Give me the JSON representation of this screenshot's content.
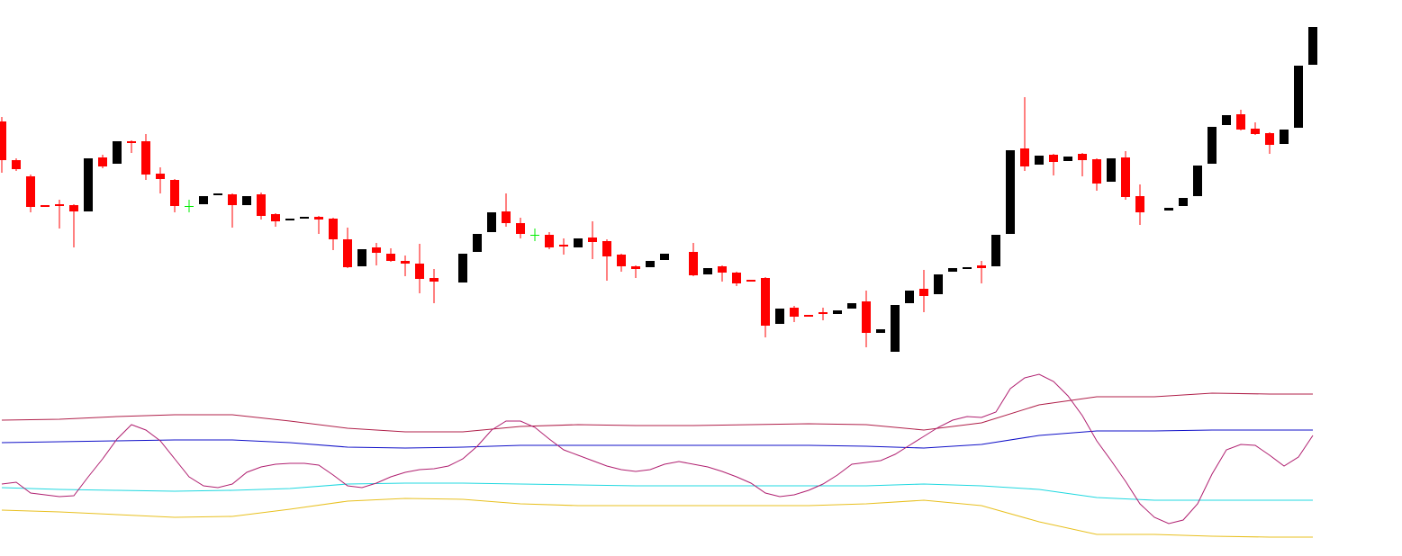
{
  "chart_data": [
    {
      "type": "candlestick",
      "xlim": [
        -0.125,
        91.875
      ],
      "ylim": [
        0,
        618
      ],
      "up_color": "#000000",
      "down_color": "#ff0000",
      "doji_color": "#00ee00",
      "x": [
        0,
        1,
        2,
        3,
        4,
        5,
        6,
        7,
        8,
        9,
        10,
        11,
        12,
        13,
        14,
        15,
        16,
        17,
        18,
        19,
        20,
        21,
        22,
        23,
        24,
        25,
        26,
        27,
        28,
        29,
        30,
        32,
        33,
        34,
        35,
        36,
        37,
        38,
        39,
        40,
        41,
        42,
        43,
        44,
        45,
        46,
        48,
        49,
        50,
        51,
        52,
        53,
        54,
        55,
        56,
        57,
        58,
        59,
        60,
        61,
        62,
        63,
        64,
        65,
        66,
        67,
        68,
        69,
        70,
        71,
        72,
        73,
        74,
        75,
        76,
        77,
        78,
        79,
        81,
        82,
        83,
        84,
        85,
        86,
        87,
        88,
        89,
        90,
        91
      ],
      "open": [
        483,
        440,
        422,
        390,
        391,
        390,
        383,
        443,
        436,
        461,
        461,
        425,
        418,
        389,
        391,
        401,
        402,
        390,
        402,
        380,
        373,
        375,
        377,
        375,
        352,
        322,
        343,
        336,
        328,
        325,
        309,
        304,
        338,
        360,
        383,
        370,
        357,
        357,
        346,
        343,
        354,
        350,
        335,
        322,
        321,
        329,
        338,
        313,
        322,
        315,
        307,
        309,
        258,
        276,
        268,
        271,
        269,
        275,
        283,
        248,
        227,
        281,
        297,
        291,
        316,
        319,
        323,
        322,
        358,
        453,
        435,
        446,
        439,
        447,
        441,
        416,
        443,
        400,
        384,
        389,
        400,
        436,
        479,
        491,
        475,
        470,
        458,
        476,
        546
      ],
      "close": [
        440,
        430,
        388,
        388,
        389,
        383,
        442,
        433,
        461,
        459,
        424,
        419,
        389,
        389,
        400,
        403,
        390,
        400,
        378,
        372,
        375,
        377,
        374,
        352,
        321,
        341,
        337,
        328,
        325,
        308,
        305,
        336,
        358,
        382,
        370,
        358,
        357,
        343,
        344,
        353,
        349,
        333,
        322,
        319,
        328,
        336,
        312,
        320,
        315,
        303,
        305,
        256,
        275,
        266,
        266,
        269,
        273,
        281,
        248,
        252,
        279,
        295,
        289,
        313,
        320,
        321,
        320,
        357,
        451,
        433,
        445,
        438,
        444,
        440,
        414,
        442,
        399,
        382,
        387,
        398,
        434,
        477,
        490,
        474,
        469,
        457,
        474,
        545,
        588
      ],
      "high": [
        488,
        442,
        424,
        390,
        396,
        391,
        442,
        446,
        461,
        462,
        469,
        432,
        419,
        396,
        400,
        403,
        403,
        400,
        404,
        381,
        375,
        377,
        378,
        376,
        365,
        341,
        348,
        342,
        334,
        347,
        319,
        336,
        358,
        382,
        403,
        376,
        364,
        360,
        353,
        353,
        372,
        352,
        336,
        323,
        328,
        336,
        348,
        320,
        323,
        316,
        307,
        310,
        275,
        278,
        268,
        276,
        273,
        281,
        295,
        252,
        279,
        295,
        318,
        313,
        320,
        321,
        328,
        357,
        451,
        510,
        445,
        447,
        444,
        448,
        442,
        442,
        450,
        413,
        387,
        398,
        434,
        477,
        490,
        496,
        482,
        471,
        474,
        545,
        588
      ],
      "low": [
        426,
        428,
        382,
        388,
        364,
        343,
        383,
        431,
        436,
        448,
        418,
        403,
        382,
        382,
        391,
        401,
        365,
        390,
        374,
        366,
        373,
        375,
        358,
        340,
        320,
        322,
        323,
        327,
        311,
        292,
        281,
        304,
        338,
        360,
        366,
        353,
        350,
        341,
        335,
        343,
        330,
        306,
        316,
        309,
        321,
        329,
        311,
        313,
        305,
        300,
        305,
        243,
        258,
        260,
        266,
        262,
        269,
        275,
        232,
        248,
        227,
        281,
        271,
        291,
        316,
        319,
        303,
        322,
        358,
        428,
        435,
        423,
        439,
        422,
        406,
        416,
        396,
        368,
        384,
        389,
        400,
        436,
        479,
        473,
        468,
        447,
        458,
        476,
        546
      ]
    },
    {
      "type": "line",
      "xlim": [
        -0.125,
        91.875
      ],
      "ylim": [
        0,
        618
      ],
      "series": [
        {
          "color": "#b0204a",
          "x": [
            0,
            4,
            8,
            12,
            16,
            20,
            24,
            28,
            32,
            36,
            40,
            44,
            48,
            52,
            56,
            60,
            64,
            68,
            72,
            76,
            80,
            84,
            88,
            91
          ],
          "values": [
            151,
            152,
            155,
            157,
            157,
            150,
            142,
            138,
            138,
            144,
            146,
            145,
            145,
            146,
            147,
            146,
            140,
            148,
            168,
            177,
            177,
            181,
            180,
            180
          ]
        },
        {
          "color": "#1010c8",
          "x": [
            0,
            4,
            8,
            12,
            16,
            20,
            24,
            28,
            32,
            36,
            40,
            44,
            48,
            52,
            56,
            60,
            64,
            68,
            72,
            76,
            80,
            84,
            88,
            91
          ],
          "values": [
            126,
            127,
            128,
            129,
            129,
            126,
            121,
            120,
            121,
            123,
            123,
            123,
            123,
            123,
            123,
            122,
            120,
            124,
            134,
            139,
            139,
            140,
            140,
            140
          ]
        },
        {
          "color": "#20d8e0",
          "x": [
            0,
            4,
            8,
            12,
            16,
            20,
            24,
            28,
            32,
            36,
            40,
            44,
            48,
            52,
            56,
            60,
            64,
            68,
            72,
            76,
            80,
            84,
            88,
            91
          ],
          "values": [
            76,
            74,
            73,
            72,
            73,
            75,
            80,
            81,
            81,
            80,
            79,
            78,
            78,
            78,
            78,
            78,
            80,
            78,
            74,
            65,
            62,
            62,
            62,
            62
          ]
        },
        {
          "color": "#e8c020",
          "x": [
            0,
            4,
            8,
            12,
            16,
            20,
            24,
            28,
            32,
            36,
            40,
            44,
            48,
            52,
            56,
            60,
            64,
            68,
            72,
            76,
            80,
            84,
            88,
            91
          ],
          "values": [
            51,
            49,
            46,
            43,
            44,
            52,
            61,
            64,
            63,
            58,
            56,
            56,
            56,
            56,
            56,
            58,
            62,
            56,
            38,
            24,
            24,
            22,
            21,
            21
          ]
        },
        {
          "color": "#b02070",
          "x": [
            0,
            1,
            2,
            3,
            4,
            5,
            6,
            7,
            8,
            9,
            10,
            11,
            12,
            13,
            14,
            15,
            16,
            17,
            18,
            19,
            20,
            21,
            22,
            23,
            24,
            25,
            26,
            27,
            28,
            29,
            30,
            31,
            32,
            33,
            34,
            35,
            36,
            37,
            38,
            39,
            40,
            41,
            42,
            43,
            44,
            45,
            46,
            47,
            48,
            49,
            50,
            51,
            52,
            53,
            54,
            55,
            56,
            57,
            58,
            59,
            60,
            61,
            62,
            63,
            64,
            65,
            66,
            67,
            68,
            69,
            70,
            71,
            72,
            73,
            74,
            75,
            76,
            77,
            78,
            79,
            80,
            81,
            82,
            83,
            84,
            85,
            86,
            87,
            88,
            89,
            90,
            91
          ],
          "values": [
            80,
            82,
            70,
            68,
            66,
            67,
            88,
            108,
            130,
            146,
            140,
            128,
            108,
            88,
            78,
            76,
            80,
            93,
            99,
            102,
            103,
            103,
            101,
            90,
            78,
            76,
            81,
            88,
            93,
            96,
            97,
            100,
            108,
            122,
            140,
            150,
            150,
            143,
            130,
            118,
            112,
            106,
            100,
            96,
            94,
            96,
            102,
            105,
            102,
            99,
            94,
            88,
            81,
            70,
            66,
            68,
            73,
            80,
            90,
            102,
            104,
            106,
            113,
            123,
            133,
            143,
            151,
            155,
            154,
            160,
            186,
            198,
            202,
            194,
            178,
            156,
            128,
            106,
            83,
            58,
            43,
            36,
            40,
            58,
            91,
            118,
            124,
            123,
            112,
            100,
            110,
            134
          ]
        }
      ]
    }
  ]
}
